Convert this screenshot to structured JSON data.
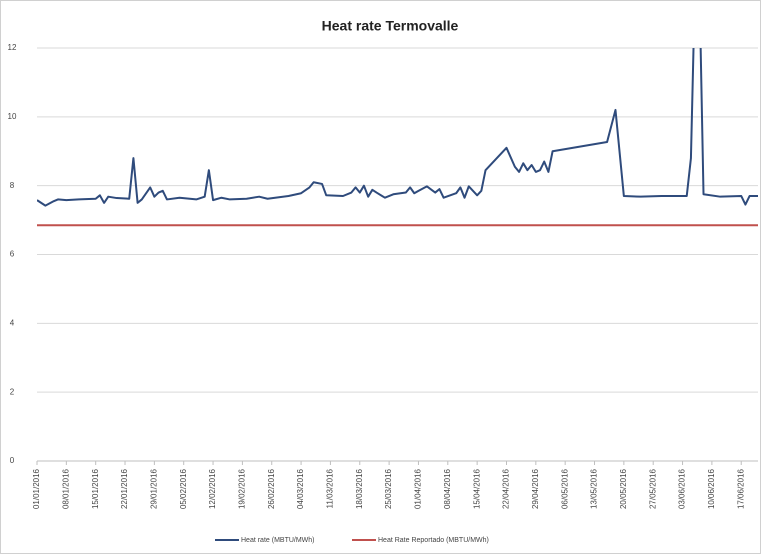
{
  "chart_data": {
    "type": "line",
    "title": "Heat rate Termovalle",
    "xlim": [
      "2016-01-01",
      "2016-06-21"
    ],
    "xticks": [
      {
        "value": "2016-01-01",
        "label": "01/01/2016"
      },
      {
        "value": "2016-01-08",
        "label": "08/01/2016"
      },
      {
        "value": "2016-01-15",
        "label": "15/01/2016"
      },
      {
        "value": "2016-01-22",
        "label": "22/01/2016"
      },
      {
        "value": "2016-01-29",
        "label": "29/01/2016"
      },
      {
        "value": "2016-02-05",
        "label": "05/02/2016"
      },
      {
        "value": "2016-02-12",
        "label": "12/02/2016"
      },
      {
        "value": "2016-02-19",
        "label": "19/02/2016"
      },
      {
        "value": "2016-02-26",
        "label": "26/02/2016"
      },
      {
        "value": "2016-03-04",
        "label": "04/03/2016"
      },
      {
        "value": "2016-03-11",
        "label": "11/03/2016"
      },
      {
        "value": "2016-03-18",
        "label": "18/03/2016"
      },
      {
        "value": "2016-03-25",
        "label": "25/03/2016"
      },
      {
        "value": "2016-04-01",
        "label": "01/04/2016"
      },
      {
        "value": "2016-04-08",
        "label": "08/04/2016"
      },
      {
        "value": "2016-04-15",
        "label": "15/04/2016"
      },
      {
        "value": "2016-04-22",
        "label": "22/04/2016"
      },
      {
        "value": "2016-04-29",
        "label": "29/04/2016"
      },
      {
        "value": "2016-05-06",
        "label": "06/05/2016"
      },
      {
        "value": "2016-05-13",
        "label": "13/05/2016"
      },
      {
        "value": "2016-05-20",
        "label": "20/05/2016"
      },
      {
        "value": "2016-05-27",
        "label": "27/05/2016"
      },
      {
        "value": "2016-06-03",
        "label": "03/06/2016"
      },
      {
        "value": "2016-06-10",
        "label": "10/06/2016"
      },
      {
        "value": "2016-06-17",
        "label": "17/06/2016"
      }
    ],
    "ylim": [
      0,
      12
    ],
    "yticks": [
      0,
      2,
      4,
      6,
      8,
      10,
      12
    ],
    "grid": true,
    "legend": "bottom",
    "series": [
      {
        "name": "Heat rate (MBTU/MWh)",
        "color": "#2f4b7c",
        "x": [
          "2016-01-01",
          "2016-01-03",
          "2016-01-05",
          "2016-01-06",
          "2016-01-08",
          "2016-01-11",
          "2016-01-15",
          "2016-01-16",
          "2016-01-17",
          "2016-01-18",
          "2016-01-20",
          "2016-01-23",
          "2016-01-24",
          "2016-01-25",
          "2016-01-26",
          "2016-01-28",
          "2016-01-29",
          "2016-01-30",
          "2016-01-31",
          "2016-02-01",
          "2016-02-04",
          "2016-02-08",
          "2016-02-10",
          "2016-02-11",
          "2016-02-12",
          "2016-02-14",
          "2016-02-16",
          "2016-02-20",
          "2016-02-23",
          "2016-02-25",
          "2016-03-01",
          "2016-03-04",
          "2016-03-06",
          "2016-03-07",
          "2016-03-09",
          "2016-03-10",
          "2016-03-14",
          "2016-03-16",
          "2016-03-17",
          "2016-03-18",
          "2016-03-19",
          "2016-03-20",
          "2016-03-21",
          "2016-03-22",
          "2016-03-24",
          "2016-03-26",
          "2016-03-29",
          "2016-03-30",
          "2016-03-31",
          "2016-04-01",
          "2016-04-03",
          "2016-04-05",
          "2016-04-06",
          "2016-04-07",
          "2016-04-10",
          "2016-04-11",
          "2016-04-12",
          "2016-04-13",
          "2016-04-15",
          "2016-04-16",
          "2016-04-17",
          "2016-04-22",
          "2016-04-24",
          "2016-04-25",
          "2016-04-26",
          "2016-04-27",
          "2016-04-28",
          "2016-04-29",
          "2016-04-30",
          "2016-05-01",
          "2016-05-02",
          "2016-05-03",
          "2016-05-16",
          "2016-05-18",
          "2016-05-20",
          "2016-05-24",
          "2016-05-29",
          "2016-06-03",
          "2016-06-04",
          "2016-06-05",
          "2016-06-06",
          "2016-06-07",
          "2016-06-08",
          "2016-06-12",
          "2016-06-17",
          "2016-06-18",
          "2016-06-19",
          "2016-06-21"
        ],
        "values": [
          7.58,
          7.42,
          7.55,
          7.6,
          7.58,
          7.6,
          7.62,
          7.72,
          7.5,
          7.68,
          7.64,
          7.62,
          8.8,
          7.5,
          7.6,
          7.95,
          7.68,
          7.8,
          7.85,
          7.6,
          7.65,
          7.6,
          7.68,
          8.45,
          7.58,
          7.65,
          7.6,
          7.62,
          7.68,
          7.62,
          7.7,
          7.78,
          7.95,
          8.1,
          8.05,
          7.72,
          7.7,
          7.8,
          7.95,
          7.8,
          8.0,
          7.68,
          7.88,
          7.8,
          7.65,
          7.75,
          7.8,
          7.95,
          7.78,
          7.85,
          7.98,
          7.8,
          7.9,
          7.65,
          7.78,
          7.95,
          7.65,
          7.98,
          7.72,
          7.85,
          8.45,
          9.1,
          8.55,
          8.4,
          8.65,
          8.45,
          8.6,
          8.4,
          8.45,
          8.7,
          8.4,
          9.0,
          9.27,
          10.2,
          7.7,
          7.68,
          7.7,
          7.7,
          7.7,
          8.8,
          14,
          14,
          7.75,
          7.68,
          7.7,
          7.45,
          7.7,
          7.7
        ]
      },
      {
        "name": "Heat Rate Reportado (MBTU/MWh)",
        "color": "#c0504d",
        "x": [
          "2016-01-01",
          "2016-06-21"
        ],
        "values": [
          6.85,
          6.85
        ]
      }
    ]
  }
}
